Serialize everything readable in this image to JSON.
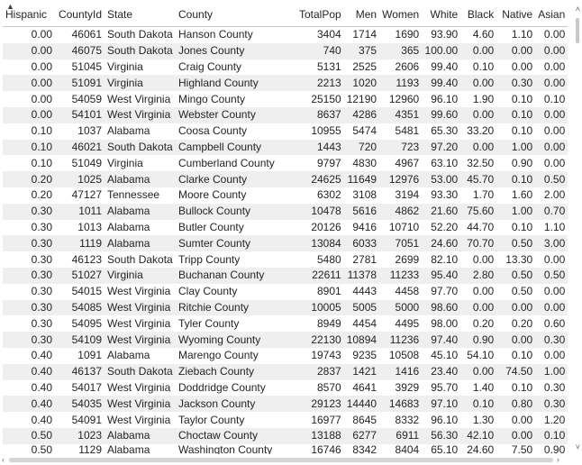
{
  "table": {
    "sort_indicator": "▲",
    "columns": [
      "Hispanic",
      "CountyId",
      "State",
      "County",
      "TotalPop",
      "Men",
      "Women",
      "White",
      "Black",
      "Native",
      "Asian"
    ],
    "rows": [
      [
        "0.00",
        "46061",
        "South Dakota",
        "Hanson County",
        "3404",
        "1714",
        "1690",
        "93.90",
        "4.60",
        "1.10",
        "0.00"
      ],
      [
        "0.00",
        "46075",
        "South Dakota",
        "Jones County",
        "740",
        "375",
        "365",
        "100.00",
        "0.00",
        "0.00",
        "0.00"
      ],
      [
        "0.00",
        "51045",
        "Virginia",
        "Craig County",
        "5131",
        "2525",
        "2606",
        "99.40",
        "0.10",
        "0.00",
        "0.00"
      ],
      [
        "0.00",
        "51091",
        "Virginia",
        "Highland County",
        "2213",
        "1020",
        "1193",
        "99.40",
        "0.00",
        "0.30",
        "0.00"
      ],
      [
        "0.00",
        "54059",
        "West Virginia",
        "Mingo County",
        "25150",
        "12190",
        "12960",
        "96.10",
        "1.90",
        "0.10",
        "0.10"
      ],
      [
        "0.00",
        "54101",
        "West Virginia",
        "Webster County",
        "8637",
        "4286",
        "4351",
        "99.60",
        "0.00",
        "0.10",
        "0.00"
      ],
      [
        "0.10",
        "1037",
        "Alabama",
        "Coosa County",
        "10955",
        "5474",
        "5481",
        "65.30",
        "33.20",
        "0.10",
        "0.00"
      ],
      [
        "0.10",
        "46021",
        "South Dakota",
        "Campbell County",
        "1443",
        "720",
        "723",
        "97.20",
        "0.00",
        "1.00",
        "0.00"
      ],
      [
        "0.10",
        "51049",
        "Virginia",
        "Cumberland County",
        "9797",
        "4830",
        "4967",
        "63.10",
        "32.50",
        "0.90",
        "0.00"
      ],
      [
        "0.20",
        "1025",
        "Alabama",
        "Clarke County",
        "24625",
        "11649",
        "12976",
        "53.00",
        "45.70",
        "0.10",
        "0.50"
      ],
      [
        "0.20",
        "47127",
        "Tennessee",
        "Moore County",
        "6302",
        "3108",
        "3194",
        "93.30",
        "1.70",
        "1.60",
        "2.00"
      ],
      [
        "0.30",
        "1011",
        "Alabama",
        "Bullock County",
        "10478",
        "5616",
        "4862",
        "21.60",
        "75.60",
        "1.00",
        "0.70"
      ],
      [
        "0.30",
        "1013",
        "Alabama",
        "Butler County",
        "20126",
        "9416",
        "10710",
        "52.20",
        "44.70",
        "0.10",
        "1.10"
      ],
      [
        "0.30",
        "1119",
        "Alabama",
        "Sumter County",
        "13084",
        "6033",
        "7051",
        "24.60",
        "70.70",
        "0.50",
        "3.00"
      ],
      [
        "0.30",
        "46123",
        "South Dakota",
        "Tripp County",
        "5480",
        "2781",
        "2699",
        "82.10",
        "0.00",
        "13.30",
        "0.00"
      ],
      [
        "0.30",
        "51027",
        "Virginia",
        "Buchanan County",
        "22611",
        "11378",
        "11233",
        "95.40",
        "2.80",
        "0.50",
        "0.50"
      ],
      [
        "0.30",
        "54015",
        "West Virginia",
        "Clay County",
        "8901",
        "4443",
        "4458",
        "97.70",
        "0.00",
        "0.50",
        "0.00"
      ],
      [
        "0.30",
        "54085",
        "West Virginia",
        "Ritchie County",
        "10005",
        "5005",
        "5000",
        "98.60",
        "0.00",
        "0.00",
        "0.00"
      ],
      [
        "0.30",
        "54095",
        "West Virginia",
        "Tyler County",
        "8949",
        "4454",
        "4495",
        "98.00",
        "0.20",
        "0.20",
        "0.60"
      ],
      [
        "0.30",
        "54109",
        "West Virginia",
        "Wyoming County",
        "22130",
        "10894",
        "11236",
        "97.40",
        "0.90",
        "0.00",
        "0.30"
      ],
      [
        "0.40",
        "1091",
        "Alabama",
        "Marengo County",
        "19743",
        "9235",
        "10508",
        "45.10",
        "54.10",
        "0.10",
        "0.00"
      ],
      [
        "0.40",
        "46137",
        "South Dakota",
        "Ziebach County",
        "2837",
        "1421",
        "1416",
        "23.40",
        "0.00",
        "74.50",
        "1.00"
      ],
      [
        "0.40",
        "54017",
        "West Virginia",
        "Doddridge County",
        "8570",
        "4641",
        "3929",
        "95.70",
        "1.40",
        "0.10",
        "0.30"
      ],
      [
        "0.40",
        "54035",
        "West Virginia",
        "Jackson County",
        "29123",
        "14440",
        "14683",
        "97.10",
        "0.10",
        "0.80",
        "0.30"
      ],
      [
        "0.40",
        "54091",
        "West Virginia",
        "Taylor County",
        "16977",
        "8645",
        "8332",
        "96.10",
        "1.30",
        "0.00",
        "1.20"
      ],
      [
        "0.50",
        "1023",
        "Alabama",
        "Choctaw County",
        "13188",
        "6277",
        "6911",
        "56.30",
        "42.10",
        "0.00",
        "0.10"
      ],
      [
        "0.50",
        "1129",
        "Alabama",
        "Washington County",
        "16746",
        "8342",
        "8404",
        "65.10",
        "24.60",
        "7.50",
        "0.90"
      ]
    ]
  },
  "scrollbar": {
    "up_glyph": "˄",
    "down_glyph": "˅",
    "left_glyph": "‹",
    "right_glyph": "›"
  }
}
